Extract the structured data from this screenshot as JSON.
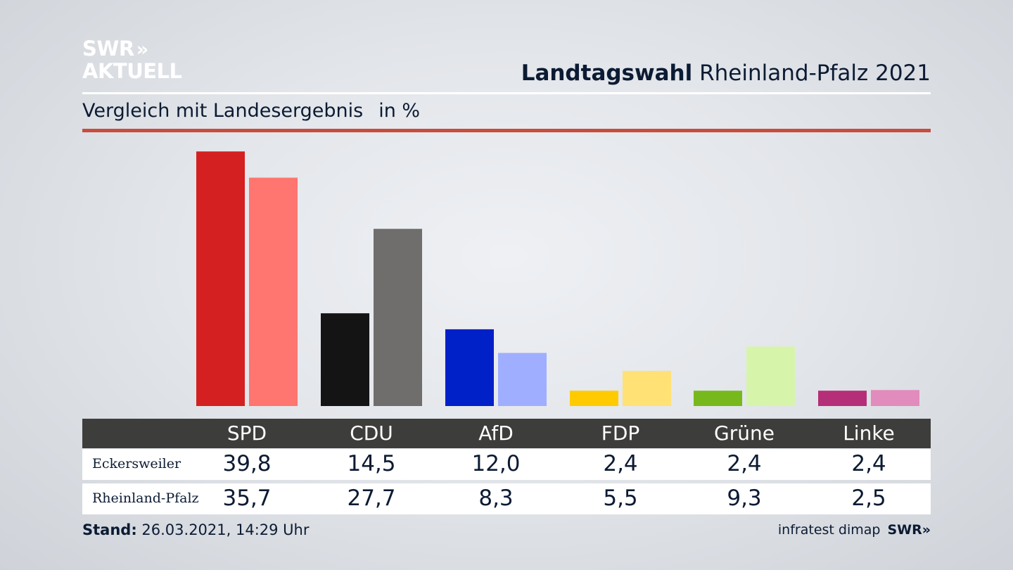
{
  "header": {
    "logo_line1": "SWR",
    "logo_line2": "AKTUELL",
    "logo_chevrons": "»",
    "title_bold": "Landtagswahl",
    "title_rest": " Rheinland-Pfalz 2021",
    "subtitle": "Vergleich mit Landesergebnis",
    "unit": "in %"
  },
  "colors": {
    "accent_rule": "#c94c3c",
    "table_header": "#3d3d3b"
  },
  "chart_data": {
    "type": "bar",
    "categories": [
      "SPD",
      "CDU",
      "AfD",
      "FDP",
      "Grüne",
      "Linke"
    ],
    "series": [
      {
        "name": "Eckersweiler",
        "values": [
          39.8,
          14.5,
          12.0,
          2.4,
          2.4,
          2.4
        ],
        "colors": [
          "#d42020",
          "#141414",
          "#0020c8",
          "#ffcb00",
          "#77b91c",
          "#b52e78"
        ]
      },
      {
        "name": "Rheinland-Pfalz",
        "values": [
          35.7,
          27.7,
          8.3,
          5.5,
          9.3,
          2.5
        ],
        "colors": [
          "#ff7570",
          "#6f6e6c",
          "#a0aeff",
          "#ffe175",
          "#d6f5ab",
          "#e28bbd"
        ]
      }
    ],
    "ylim": [
      0,
      40
    ],
    "grid": false,
    "legend": "table"
  },
  "table": {
    "headers": [
      "SPD",
      "CDU",
      "AfD",
      "FDP",
      "Grüne",
      "Linke"
    ],
    "rows": [
      {
        "label": "Eckersweiler",
        "values": [
          "39,8",
          "14,5",
          "12,0",
          "2,4",
          "2,4",
          "2,4"
        ]
      },
      {
        "label": "Rheinland-Pfalz",
        "values": [
          "35,7",
          "27,7",
          "8,3",
          "5,5",
          "9,3",
          "2,5"
        ]
      }
    ]
  },
  "footer": {
    "stand_label": "Stand:",
    "stand_value": " 26.03.2021, 14:29 Uhr",
    "source": "infratest dimap",
    "source_logo": "SWR»"
  }
}
